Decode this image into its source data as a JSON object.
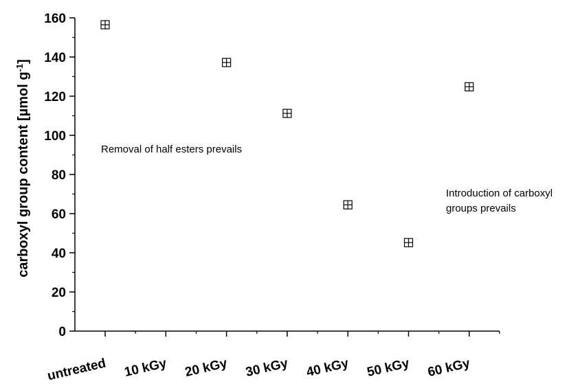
{
  "chart_data": {
    "type": "scatter",
    "categories": [
      "untreated",
      "10 kGy",
      "20 kGy",
      "30 kGy",
      "40 kGy",
      "50 kGy",
      "60 kGy"
    ],
    "points": [
      {
        "category": "untreated",
        "value": 156.5
      },
      {
        "category": "20 kGy",
        "value": 137.2
      },
      {
        "category": "30 kGy",
        "value": 111.2
      },
      {
        "category": "40 kGy",
        "value": 64.5
      },
      {
        "category": "50 kGy",
        "value": 45.2
      },
      {
        "category": "60 kGy",
        "value": 124.8
      }
    ],
    "ylabel_main": "carboxyl group content [µmol g",
    "ylabel_sup": "-1",
    "ylabel_end": "]",
    "xlabel": "",
    "title": "",
    "ylim": [
      0,
      160
    ],
    "yticks": [
      0,
      20,
      40,
      60,
      80,
      100,
      120,
      140,
      160
    ],
    "grid": false,
    "marker": "square-with-cross",
    "annotations": [
      {
        "lines": [
          "Removal of half esters prevails"
        ]
      },
      {
        "lines": [
          "Introduction of carboxyl",
          "groups prevails"
        ]
      }
    ]
  }
}
